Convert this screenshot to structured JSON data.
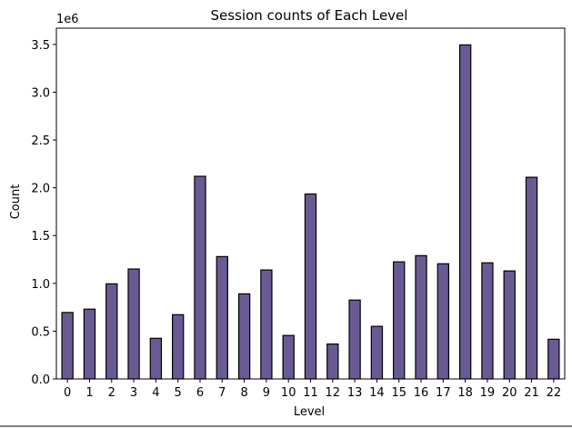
{
  "chart_data": {
    "type": "bar",
    "title": "Session counts of Each Level",
    "xlabel": "Level",
    "ylabel": "Count",
    "y_multiplier_label": "1e6",
    "categories": [
      "0",
      "1",
      "2",
      "3",
      "4",
      "5",
      "6",
      "7",
      "8",
      "9",
      "10",
      "11",
      "12",
      "13",
      "14",
      "15",
      "16",
      "17",
      "18",
      "19",
      "20",
      "21",
      "22"
    ],
    "values": [
      695000,
      730000,
      995000,
      1150000,
      425000,
      672000,
      2120000,
      1280000,
      890000,
      1140000,
      455000,
      1935000,
      365000,
      825000,
      550000,
      1225000,
      1290000,
      1205000,
      3495000,
      1215000,
      1130000,
      2110000,
      415000
    ],
    "ylim": [
      0,
      3670000
    ],
    "yticks": [
      0,
      500000,
      1000000,
      1500000,
      2000000,
      2500000,
      3000000,
      3500000
    ],
    "ytick_labels": [
      "0.0",
      "0.5",
      "1.0",
      "1.5",
      "2.0",
      "2.5",
      "3.0",
      "3.5"
    ],
    "grid": false,
    "bar_color": "#6a5a94",
    "edge_color": "#000000"
  }
}
